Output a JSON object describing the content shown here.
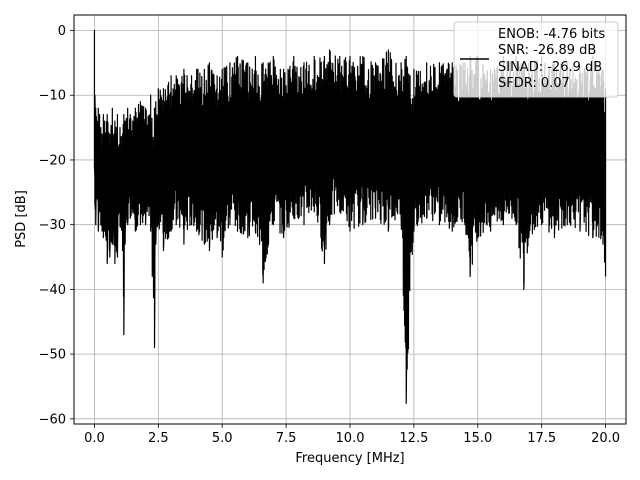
{
  "chart_data": {
    "type": "line",
    "xlabel": "Frequency [MHz]",
    "ylabel": "PSD [dB]",
    "xlim": [
      -0.8,
      20.8
    ],
    "ylim": [
      -60.8,
      2.4
    ],
    "xticks": [
      0.0,
      2.5,
      5.0,
      7.5,
      10.0,
      12.5,
      15.0,
      17.5,
      20.0
    ],
    "xtick_labels": [
      "0.0",
      "2.5",
      "5.0",
      "7.5",
      "10.0",
      "12.5",
      "15.0",
      "17.5",
      "20.0"
    ],
    "yticks": [
      0,
      -10,
      -20,
      -30,
      -40,
      -50,
      -60
    ],
    "ytick_labels": [
      "0",
      "−10",
      "−20",
      "−30",
      "−40",
      "−50",
      "−60"
    ],
    "grid": true,
    "legend_position": "top-right",
    "series": [
      {
        "name": "ENOB: -4.76 bits\nSNR: -26.89 dB\nSINAD: -26.9 dB\nSFDR: 0.07",
        "color": "#000000",
        "x": [
          0.0,
          0.02,
          0.05,
          0.1,
          0.15,
          0.2,
          0.25,
          0.3,
          0.35,
          0.4,
          0.5,
          0.6,
          0.7,
          0.8,
          0.9,
          1.0,
          1.1,
          1.15,
          1.2,
          1.3,
          1.4,
          1.5,
          1.6,
          1.8,
          2.0,
          2.2,
          2.35,
          2.4,
          2.5,
          2.7,
          2.9,
          3.0,
          3.2,
          3.5,
          3.8,
          4.0,
          4.3,
          4.5,
          4.8,
          5.0,
          5.3,
          5.6,
          6.0,
          6.3,
          6.6,
          7.0,
          7.4,
          7.8,
          8.2,
          8.6,
          9.0,
          9.2,
          9.6,
          10.0,
          10.5,
          11.0,
          11.5,
          12.0,
          12.2,
          12.5,
          13.0,
          13.5,
          14.0,
          14.5,
          14.7,
          15.0,
          15.5,
          16.0,
          16.5,
          16.8,
          17.0,
          17.5,
          18.0,
          18.5,
          19.0,
          19.5,
          19.9,
          20.0
        ],
        "high": [
          0.0,
          -10,
          -12,
          -14,
          -12,
          -13,
          -15,
          -16,
          -13,
          -14,
          -13,
          -16,
          -12,
          -14,
          -13,
          -15,
          -16,
          -13,
          -14,
          -12,
          -13,
          -14,
          -12,
          -11,
          -12,
          -10,
          -12,
          -11,
          -9,
          -9,
          -8,
          -7,
          -7,
          -6,
          -7,
          -6,
          -6,
          -5,
          -7,
          -6,
          -5,
          -4,
          -5,
          -4,
          -5,
          -4,
          -6,
          -4,
          -5,
          -4,
          -4,
          -3,
          -4,
          -4,
          -4,
          -5,
          -3,
          -5,
          -4,
          -6,
          -5,
          -5,
          -5,
          -5,
          -4,
          -4,
          -6,
          -4,
          -4,
          -5,
          -5,
          -4,
          -5,
          -5,
          -6,
          -4,
          -6,
          -9
        ],
        "low": [
          -21,
          -27,
          -30,
          -26,
          -31,
          -28,
          -30,
          -31,
          -32,
          -31,
          -36,
          -35,
          -33,
          -36,
          -35,
          -30,
          -34,
          -47,
          -33,
          -30,
          -29,
          -28,
          -31,
          -30,
          -30,
          -31,
          -49,
          -33,
          -30,
          -34,
          -32,
          -31,
          -30,
          -33,
          -30,
          -31,
          -33,
          -34,
          -32,
          -35,
          -30,
          -31,
          -32,
          -31,
          -39,
          -30,
          -32,
          -29,
          -30,
          -28,
          -36,
          -30,
          -28,
          -31,
          -30,
          -29,
          -31,
          -29,
          -57.6,
          -31,
          -29,
          -30,
          -31,
          -30,
          -38,
          -32,
          -31,
          -30,
          -30,
          -40,
          -32,
          -30,
          -32,
          -30,
          -31,
          -32,
          -33,
          -38
        ]
      }
    ],
    "legend_lines": [
      "ENOB: -4.76 bits",
      "SNR: -26.89 dB",
      "SINAD: -26.9 dB",
      "SFDR: 0.07"
    ]
  }
}
